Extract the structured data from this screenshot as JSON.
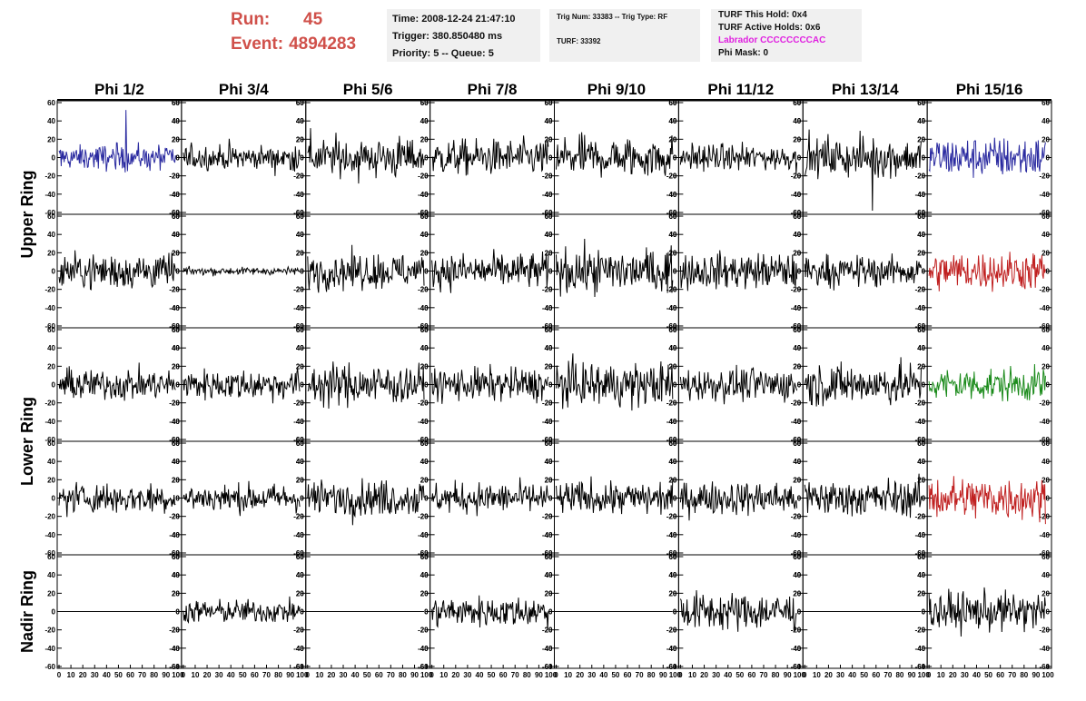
{
  "header": {
    "run_label": "Run:",
    "run_value": "45",
    "event_label": "Event:",
    "event_value": "4894283"
  },
  "info1": {
    "time": "Time: 2008-12-24 21:47:10",
    "trigger": "Trigger: 380.850480 ms",
    "priority": "Priority: 5 -- Queue: 5"
  },
  "info2": {
    "trig": "Trig Num: 33383 -- Trig Type: RF",
    "turf": "TURF: 33392"
  },
  "info3": {
    "hold": "TURF This Hold: 0x4",
    "active": "TURF Active Holds: 0x6",
    "labrador": "Labrador CCCCCCCCAC",
    "phimask": "Phi Mask: 0"
  },
  "colors": {
    "black": "#000000",
    "blue": "#2a2aa0",
    "red": "#c02020",
    "green": "#1a8a1a",
    "run_text": "#d0504a",
    "labrador": "#e020e0"
  },
  "chart_data": {
    "type": "line",
    "columns": [
      "Phi 1/2",
      "Phi 3/4",
      "Phi 5/6",
      "Phi 7/8",
      "Phi 9/10",
      "Phi 11/12",
      "Phi 13/14",
      "Phi 15/16"
    ],
    "row_groups": [
      "Upper Ring",
      "Lower Ring",
      "Nadir Ring"
    ],
    "ylim": [
      -62,
      62
    ],
    "xlim": [
      0,
      100
    ],
    "yticks": [
      -60,
      -40,
      -20,
      0,
      20,
      40,
      60
    ],
    "xtick_labels": [
      "0",
      "10",
      "20",
      "30",
      "40",
      "50",
      "60",
      "70",
      "80",
      "90",
      "100"
    ],
    "panels": [
      [
        {
          "amp": 10,
          "color": "blue",
          "spike": 52
        },
        {
          "amp": 10,
          "color": "black"
        },
        {
          "amp": 16,
          "color": "black"
        },
        {
          "amp": 14,
          "color": "black"
        },
        {
          "amp": 16,
          "color": "black"
        },
        {
          "amp": 10,
          "color": "black"
        },
        {
          "amp": 15,
          "color": "black",
          "spike": -58
        },
        {
          "amp": 16,
          "color": "blue"
        }
      ],
      [
        {
          "amp": 14,
          "color": "black"
        },
        {
          "amp": 3,
          "color": "black"
        },
        {
          "amp": 14,
          "color": "black"
        },
        {
          "amp": 14,
          "color": "black"
        },
        {
          "amp": 17,
          "color": "black"
        },
        {
          "amp": 14,
          "color": "black"
        },
        {
          "amp": 12,
          "color": "black"
        },
        {
          "amp": 15,
          "color": "red"
        }
      ],
      [
        {
          "amp": 12,
          "color": "black"
        },
        {
          "amp": 12,
          "color": "black"
        },
        {
          "amp": 16,
          "color": "black"
        },
        {
          "amp": 13,
          "color": "black"
        },
        {
          "amp": 17,
          "color": "black"
        },
        {
          "amp": 13,
          "color": "black"
        },
        {
          "amp": 16,
          "color": "black"
        },
        {
          "amp": 13,
          "color": "green"
        }
      ],
      [
        {
          "amp": 12,
          "color": "black"
        },
        {
          "amp": 11,
          "color": "black"
        },
        {
          "amp": 14,
          "color": "black"
        },
        {
          "amp": 12,
          "color": "black"
        },
        {
          "amp": 13,
          "color": "black"
        },
        {
          "amp": 13,
          "color": "black"
        },
        {
          "amp": 14,
          "color": "black"
        },
        {
          "amp": 17,
          "color": "red"
        }
      ],
      [
        {
          "amp": 0,
          "color": "black"
        },
        {
          "amp": 9,
          "color": "black"
        },
        {
          "amp": 0,
          "color": "black"
        },
        {
          "amp": 12,
          "color": "black"
        },
        {
          "amp": 0,
          "color": "black"
        },
        {
          "amp": 15,
          "color": "black"
        },
        {
          "amp": 0,
          "color": "black"
        },
        {
          "amp": 15,
          "color": "black"
        }
      ]
    ]
  }
}
